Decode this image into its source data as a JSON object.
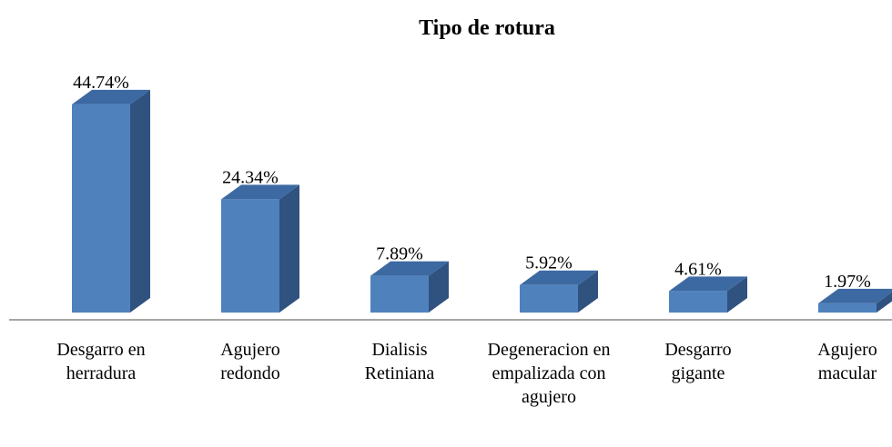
{
  "chart_data": {
    "type": "bar3d",
    "title": "Tipo de rotura",
    "categories": [
      "Desgarro en herradura",
      "Agujero redondo",
      "Dialisis Retiniana",
      "Degeneracion en empalizada con agujero",
      "Desgarro gigante",
      "Agujero macular"
    ],
    "values": [
      44.74,
      24.34,
      7.89,
      5.92,
      4.61,
      1.97
    ],
    "value_labels": [
      "44.74%",
      "24.34%",
      "7.89%",
      "5.92%",
      "4.61%",
      "1.97%"
    ],
    "color": "#4f81bd"
  }
}
